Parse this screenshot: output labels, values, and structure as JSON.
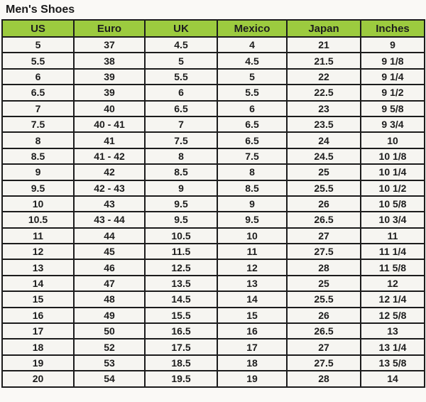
{
  "page": {
    "title": "Men's Shoes"
  },
  "colors": {
    "header_green": "#9CCB3F",
    "border_black": "#1c1c1c",
    "cell_background": "#F6F5F1",
    "page_background": "#FAF9F6",
    "text": "#1d1d1d"
  },
  "table": {
    "columns": [
      "US",
      "Euro",
      "UK",
      "Mexico",
      "Japan",
      "Inches"
    ],
    "rows": [
      [
        "5",
        "37",
        "4.5",
        "4",
        "21",
        "9"
      ],
      [
        "5.5",
        "38",
        "5",
        "4.5",
        "21.5",
        "9 1/8"
      ],
      [
        "6",
        "39",
        "5.5",
        "5",
        "22",
        "9 1/4"
      ],
      [
        "6.5",
        "39",
        "6",
        "5.5",
        "22.5",
        "9 1/2"
      ],
      [
        "7",
        "40",
        "6.5",
        "6",
        "23",
        "9 5/8"
      ],
      [
        "7.5",
        "40 - 41",
        "7",
        "6.5",
        "23.5",
        "9 3/4"
      ],
      [
        "8",
        "41",
        "7.5",
        "6.5",
        "24",
        "10"
      ],
      [
        "8.5",
        "41 - 42",
        "8",
        "7.5",
        "24.5",
        "10 1/8"
      ],
      [
        "9",
        "42",
        "8.5",
        "8",
        "25",
        "10 1/4"
      ],
      [
        "9.5",
        "42 - 43",
        "9",
        "8.5",
        "25.5",
        "10 1/2"
      ],
      [
        "10",
        "43",
        "9.5",
        "9",
        "26",
        "10 5/8"
      ],
      [
        "10.5",
        "43 - 44",
        "9.5",
        "9.5",
        "26.5",
        "10 3/4"
      ],
      [
        "11",
        "44",
        "10.5",
        "10",
        "27",
        "11"
      ],
      [
        "12",
        "45",
        "11.5",
        "11",
        "27.5",
        "11 1/4"
      ],
      [
        "13",
        "46",
        "12.5",
        "12",
        "28",
        "11 5/8"
      ],
      [
        "14",
        "47",
        "13.5",
        "13",
        "25",
        "12"
      ],
      [
        "15",
        "48",
        "14.5",
        "14",
        "25.5",
        "12 1/4"
      ],
      [
        "16",
        "49",
        "15.5",
        "15",
        "26",
        "12 5/8"
      ],
      [
        "17",
        "50",
        "16.5",
        "16",
        "26.5",
        "13"
      ],
      [
        "18",
        "52",
        "17.5",
        "17",
        "27",
        "13 1/4"
      ],
      [
        "19",
        "53",
        "18.5",
        "18",
        "27.5",
        "13 5/8"
      ],
      [
        "20",
        "54",
        "19.5",
        "19",
        "28",
        "14"
      ]
    ]
  }
}
